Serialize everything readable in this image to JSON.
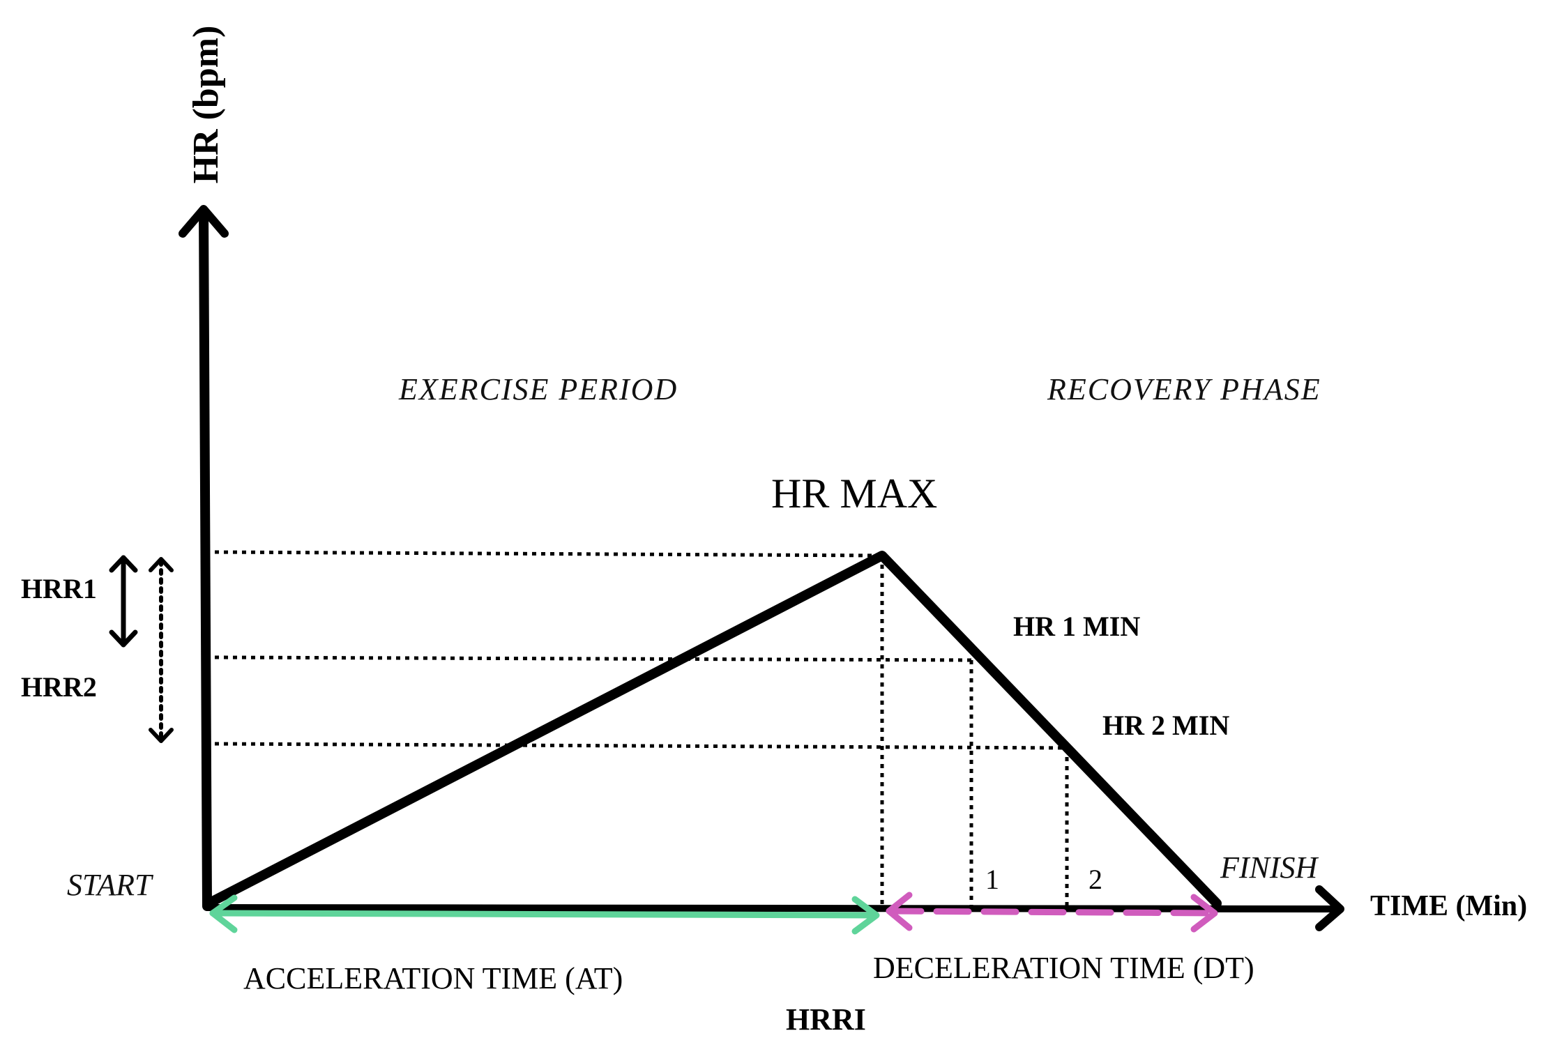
{
  "axes": {
    "y_label": "HR (bpm)",
    "x_label": "TIME (Min)"
  },
  "phases": {
    "exercise": "EXERCISE PERIOD",
    "recovery": "RECOVERY PHASE"
  },
  "points": {
    "start": "START",
    "finish": "FINISH",
    "hr_max": "HR MAX",
    "hr_1min": "HR 1 MIN",
    "hr_2min": "HR 2 MIN"
  },
  "markers": {
    "hrr1": "HRR1",
    "hrr2": "HRR2",
    "tick_1": "1",
    "tick_2": "2"
  },
  "times": {
    "acceleration": "ACCELERATION TIME (AT)",
    "deceleration": "DECELERATION TIME (DT)",
    "index": "HRRI"
  },
  "colors": {
    "acceleration_arrow": "#5fd49a",
    "deceleration_arrow": "#d05cbd",
    "line": "#000000"
  }
}
